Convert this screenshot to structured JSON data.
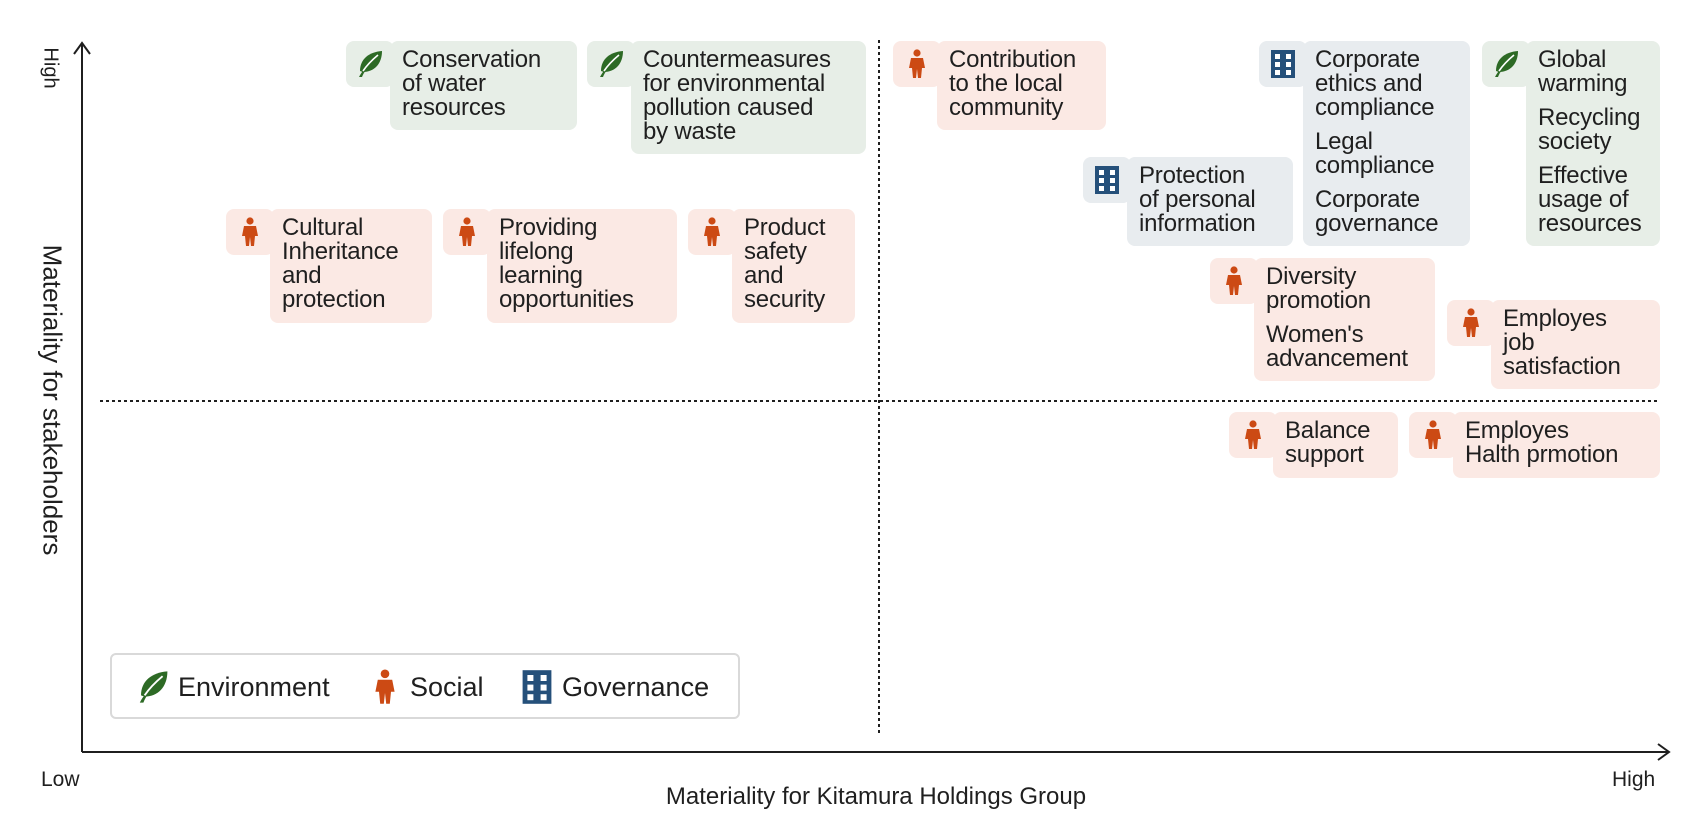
{
  "colors": {
    "environment": "#2d6a25",
    "social": "#cc4a14",
    "governance": "#25507a"
  },
  "axes": {
    "x_title": "Materiality for Kitamura Holdings Group",
    "x_low": "Low",
    "x_high": "High",
    "y_title": "Materiality for stakeholders",
    "y_high": "High"
  },
  "legend": [
    {
      "category": "environment",
      "icon": "leaf-icon",
      "label": "Environment"
    },
    {
      "category": "social",
      "icon": "person-icon",
      "label": "Social"
    },
    {
      "category": "governance",
      "icon": "building-icon",
      "label": "Governance"
    }
  ],
  "items": [
    {
      "category": "environment",
      "texts": [
        "Conservation\nof water\nresources"
      ]
    },
    {
      "category": "environment",
      "texts": [
        "Countermeasures\nfor environmental\npollution caused\nby waste"
      ]
    },
    {
      "category": "social",
      "texts": [
        "Contribution\nto the local\ncommunity"
      ]
    },
    {
      "category": "governance",
      "texts": [
        "Corporate\nethics and\ncompliance",
        "Legal\ncompliance",
        "Corporate\ngovernance"
      ]
    },
    {
      "category": "environment",
      "texts": [
        "Global\nwarming",
        "Recycling\nsociety",
        "Effective\nusage of\nresources"
      ]
    },
    {
      "category": "governance",
      "texts": [
        "Protection\nof personal\ninformation"
      ]
    },
    {
      "category": "social",
      "texts": [
        "Cultural\nInheritance\nand\nprotection"
      ]
    },
    {
      "category": "social",
      "texts": [
        "Providing\nlifelong\nlearning\nopportunities"
      ]
    },
    {
      "category": "social",
      "texts": [
        "Product\nsafety\nand\nsecurity"
      ]
    },
    {
      "category": "social",
      "texts": [
        "Diversity\npromotion",
        "Women's\nadvancement"
      ]
    },
    {
      "category": "social",
      "texts": [
        "Employes\njob\nsatisfaction"
      ]
    },
    {
      "category": "social",
      "texts": [
        "Balance\nsupport"
      ]
    },
    {
      "category": "social",
      "texts": [
        "Employes\nHalth prmotion"
      ]
    }
  ]
}
